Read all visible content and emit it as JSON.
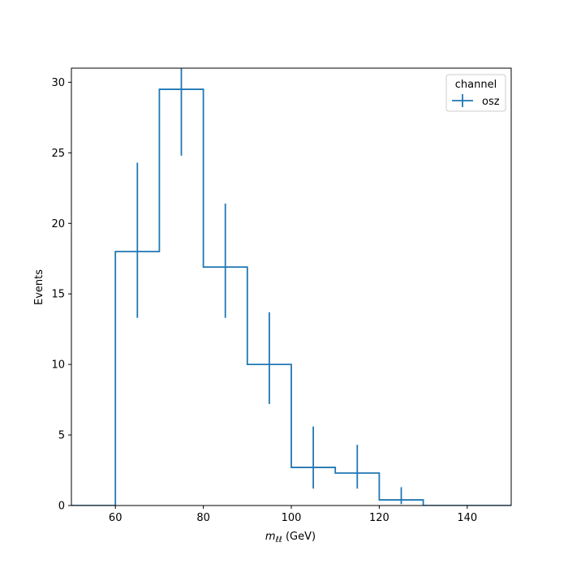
{
  "chart_data": {
    "type": "histogram",
    "xlabel_main": "m",
    "xlabel_sub": "ℓℓ",
    "xlabel_unit": " (GeV)",
    "ylabel": "Events",
    "xlim": [
      50,
      150
    ],
    "ylim": [
      0,
      31
    ],
    "x_ticks": [
      60,
      80,
      100,
      120,
      140
    ],
    "y_ticks": [
      0,
      5,
      10,
      15,
      20,
      25,
      30
    ],
    "grid": false,
    "legend": {
      "title": "channel",
      "placement": "top-right"
    },
    "color": "#1f77b4",
    "bin_edges": [
      50,
      60,
      70,
      80,
      90,
      100,
      110,
      120,
      130,
      140,
      150
    ],
    "series": [
      {
        "name": "osz",
        "values": [
          0,
          18.0,
          29.5,
          16.9,
          10.0,
          2.7,
          2.3,
          0.4,
          0,
          0
        ],
        "errors": [
          null,
          {
            "x": 65,
            "low": 13.3,
            "high": 24.3
          },
          {
            "x": 75,
            "low": 24.8,
            "high": 31.0
          },
          {
            "x": 85,
            "low": 13.3,
            "high": 21.4
          },
          {
            "x": 95,
            "low": 7.2,
            "high": 13.7
          },
          {
            "x": 105,
            "low": 1.2,
            "high": 5.6
          },
          {
            "x": 115,
            "low": 1.2,
            "high": 4.3
          },
          {
            "x": 125,
            "low": 0.1,
            "high": 1.3
          },
          null,
          null
        ]
      }
    ]
  }
}
